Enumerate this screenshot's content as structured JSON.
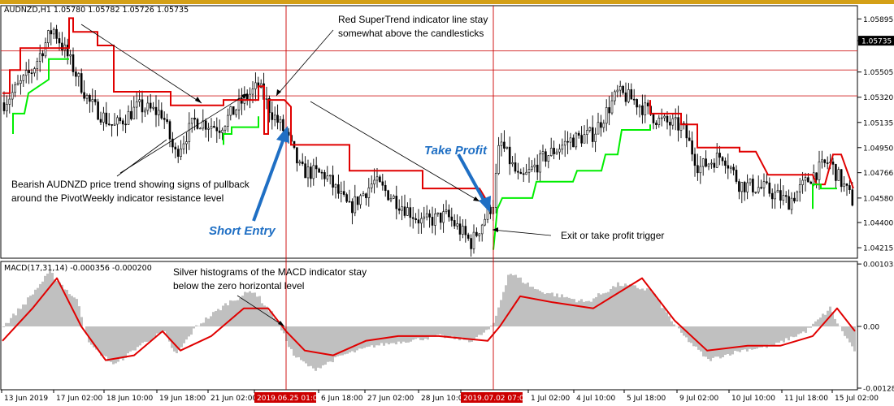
{
  "chart_data": [
    {
      "type": "candlestick",
      "title": "AUDNZD,H1  1.05780 1.05782 1.05726 1.05735",
      "ylim": [
        1.0415,
        1.0598
      ],
      "y_ticks": [
        "1.05895",
        "1.05735",
        "1.05505",
        "1.05320",
        "1.05135",
        "1.04950",
        "1.04766",
        "1.04580",
        "1.04400",
        "1.04215"
      ],
      "current_price": "1.05735",
      "x_ticks": [
        "13 Jun 2019",
        "17 Jun 02:00",
        "18 Jun 10:00",
        "19 Jun 18:00",
        "21 Jun 02:00",
        "2019.06.25 01:00",
        "6 Jun 18:00",
        "27 Jun 02:00",
        "28 Jun 10:00",
        "2019.07.02 07:00",
        "1 Jul 02:00",
        "4 Jul 10:00",
        "5 Jul 18:00",
        "9 Jul 02:00",
        "10 Jul 10:00",
        "11 Jul 18:00",
        "15 Jul 02:00"
      ],
      "highlighted_times": [
        "2019.06.25 01:00",
        "2019.07.02 07:00"
      ],
      "pivot_levels": [
        1.0566,
        1.0552,
        1.0533
      ],
      "supertrend_colors": {
        "bearish": "#e00000",
        "bullish": "#00ee00"
      },
      "annotations": {
        "supertrend": [
          "Red SuperTrend indicator line stay",
          "somewhat above the candlesticks"
        ],
        "pullback": [
          "Bearish AUDNZD price trend showing signs of pullback",
          "around the PivotWeekly indicator resistance level"
        ],
        "exit": "Exit or take profit trigger",
        "short_entry": "Short Entry",
        "take_profit": "Take Profit"
      }
    },
    {
      "type": "histogram+line",
      "title": "MACD(17,31,14) -0.000356 -0.000200",
      "ylim": [
        -0.00128,
        0.00105
      ],
      "y_ticks": [
        "0.001035",
        "0.00",
        "-0.00128"
      ],
      "histogram_color": "#c0c0c0",
      "signal_color": "#e00000",
      "annotation": [
        "Silver histograms of the MACD indicator stay",
        "below the zero horizontal level"
      ]
    }
  ],
  "colors": {
    "accent": "#1f6fc4",
    "marker": "#cc0000",
    "frame": "#000000",
    "title_bar": "#d4a017"
  }
}
